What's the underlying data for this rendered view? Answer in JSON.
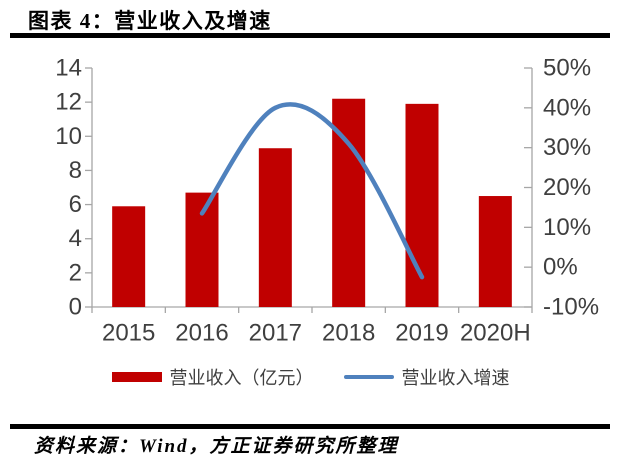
{
  "header": {
    "title": "图表 4：营业收入及增速"
  },
  "footer": {
    "source": "资料来源：Wind，方正证券研究所整理"
  },
  "legend": {
    "bar_label": "营业收入（亿元）",
    "line_label": "营业收入增速"
  },
  "colors": {
    "bar": "#C00000",
    "line": "#4F81BD",
    "axis": "#a6a6a6",
    "tick_text": "#3f3f3f",
    "rule": "#000000"
  },
  "chart_data": {
    "type": "bar",
    "subtype": "bar+line combo, dual axis",
    "title": "营业收入及增速",
    "categories": [
      "2015",
      "2016",
      "2017",
      "2018",
      "2019",
      "2020H"
    ],
    "series": [
      {
        "name": "营业收入（亿元）",
        "type": "bar",
        "axis": "left",
        "values": [
          5.9,
          6.7,
          9.3,
          12.2,
          11.9,
          6.5
        ]
      },
      {
        "name": "营业收入增速",
        "type": "line",
        "axis": "right",
        "unit": "%",
        "values": [
          null,
          13.5,
          40,
          31,
          -2.5,
          null
        ]
      }
    ],
    "left_axis": {
      "min": 0,
      "max": 14,
      "step": 2,
      "tick_labels": [
        "0",
        "2",
        "4",
        "6",
        "8",
        "10",
        "12",
        "14"
      ]
    },
    "right_axis": {
      "min": -10,
      "max": 50,
      "step": 10,
      "tick_labels": [
        "-10%",
        "0%",
        "10%",
        "20%",
        "30%",
        "40%",
        "50%"
      ]
    },
    "grid": false,
    "legend_position": "bottom"
  }
}
